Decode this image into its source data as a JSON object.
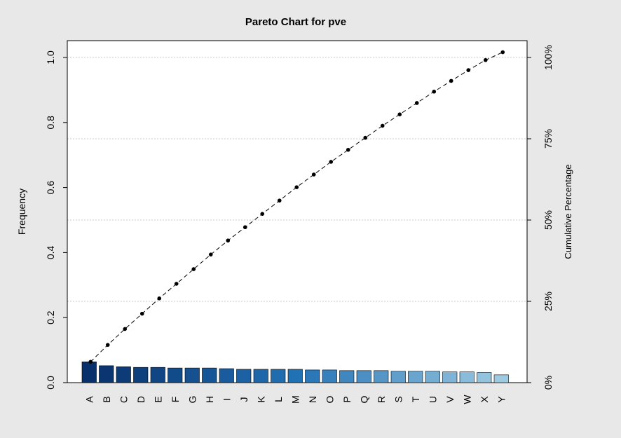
{
  "chart_data": {
    "type": "bar",
    "title": "Pareto Chart for pve",
    "xlabel": "",
    "ylabel": "Frequency",
    "ylabel_right": "Cumulative Percentage",
    "categories": [
      "A",
      "B",
      "C",
      "D",
      "E",
      "F",
      "G",
      "H",
      "I",
      "J",
      "K",
      "L",
      "M",
      "N",
      "O",
      "P",
      "Q",
      "R",
      "S",
      "T",
      "U",
      "V",
      "W",
      "X",
      "Y"
    ],
    "values": [
      0.064,
      0.052,
      0.049,
      0.047,
      0.047,
      0.045,
      0.045,
      0.045,
      0.043,
      0.041,
      0.041,
      0.041,
      0.041,
      0.039,
      0.039,
      0.037,
      0.037,
      0.037,
      0.035,
      0.035,
      0.035,
      0.033,
      0.033,
      0.031,
      0.024
    ],
    "cumulative": [
      0.064,
      0.116,
      0.165,
      0.212,
      0.259,
      0.304,
      0.349,
      0.394,
      0.437,
      0.478,
      0.519,
      0.56,
      0.601,
      0.64,
      0.679,
      0.716,
      0.753,
      0.79,
      0.825,
      0.86,
      0.895,
      0.928,
      0.961,
      0.992,
      1.016
    ],
    "ylim": [
      0,
      1.0
    ],
    "y_ticks": [
      "0.0",
      "0.2",
      "0.4",
      "0.6",
      "0.8",
      "1.0"
    ],
    "y_tick_values": [
      0,
      0.2,
      0.4,
      0.6,
      0.8,
      1.0
    ],
    "right_ticks": [
      "0%",
      "25%",
      "50%",
      "75%",
      "100%"
    ],
    "right_tick_values": [
      0,
      0.25,
      0.5,
      0.75,
      1.0
    ],
    "grid": "horizontal-dotted",
    "legend": "none",
    "colors": {
      "bar_dark": "#08306b",
      "bar_mid": "#2171b5",
      "bar_light": "#9ecae1",
      "line": "#000000",
      "grid": "#c8c8c8",
      "background": "#e8e8e8",
      "plot_background": "#ffffff"
    }
  }
}
